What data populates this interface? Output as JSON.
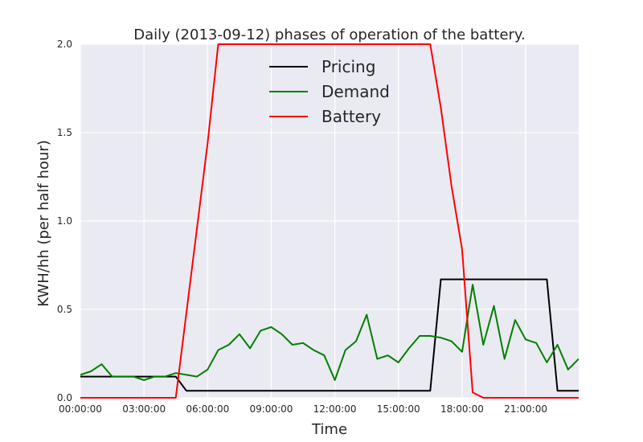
{
  "chart_data": {
    "type": "line",
    "title": "Daily (2013-09-12) phases of operation of the battery.",
    "xlabel": "Time",
    "ylabel": "KWH/hh (per half hour)",
    "xlim": [
      "00:00:00",
      "23:30:00"
    ],
    "ylim": [
      0,
      2.0
    ],
    "x_ticks": [
      "00:00:00",
      "03:00:00",
      "06:00:00",
      "09:00:00",
      "12:00:00",
      "15:00:00",
      "18:00:00",
      "21:00:00"
    ],
    "y_ticks": [
      "0.0",
      "0.5",
      "1.0",
      "1.5",
      "2.0"
    ],
    "grid": true,
    "legend_position": "top-center",
    "background": "#EAEAF2",
    "x": [
      "00:00:00",
      "00:30:00",
      "01:00:00",
      "01:30:00",
      "02:00:00",
      "02:30:00",
      "03:00:00",
      "03:30:00",
      "04:00:00",
      "04:30:00",
      "05:00:00",
      "05:30:00",
      "06:00:00",
      "06:30:00",
      "07:00:00",
      "07:30:00",
      "08:00:00",
      "08:30:00",
      "09:00:00",
      "09:30:00",
      "10:00:00",
      "10:30:00",
      "11:00:00",
      "11:30:00",
      "12:00:00",
      "12:30:00",
      "13:00:00",
      "13:30:00",
      "14:00:00",
      "14:30:00",
      "15:00:00",
      "15:30:00",
      "16:00:00",
      "16:30:00",
      "17:00:00",
      "17:30:00",
      "18:00:00",
      "18:30:00",
      "19:00:00",
      "19:30:00",
      "20:00:00",
      "20:30:00",
      "21:00:00",
      "21:30:00",
      "22:00:00",
      "22:30:00",
      "23:00:00",
      "23:30:00"
    ],
    "series": [
      {
        "name": "Pricing",
        "color": "#000000",
        "values": [
          0.12,
          0.12,
          0.12,
          0.12,
          0.12,
          0.12,
          0.12,
          0.12,
          0.12,
          0.12,
          0.04,
          0.04,
          0.04,
          0.04,
          0.04,
          0.04,
          0.04,
          0.04,
          0.04,
          0.04,
          0.04,
          0.04,
          0.04,
          0.04,
          0.04,
          0.04,
          0.04,
          0.04,
          0.04,
          0.04,
          0.04,
          0.04,
          0.04,
          0.04,
          0.67,
          0.67,
          0.67,
          0.67,
          0.67,
          0.67,
          0.67,
          0.67,
          0.67,
          0.67,
          0.67,
          0.04,
          0.04,
          0.04
        ]
      },
      {
        "name": "Demand",
        "color": "#008000",
        "values": [
          0.13,
          0.15,
          0.19,
          0.12,
          0.12,
          0.12,
          0.1,
          0.12,
          0.12,
          0.14,
          0.13,
          0.12,
          0.16,
          0.27,
          0.3,
          0.36,
          0.28,
          0.38,
          0.4,
          0.36,
          0.3,
          0.31,
          0.27,
          0.24,
          0.1,
          0.27,
          0.32,
          0.47,
          0.22,
          0.24,
          0.2,
          0.28,
          0.35,
          0.35,
          0.34,
          0.32,
          0.26,
          0.64,
          0.3,
          0.52,
          0.22,
          0.44,
          0.33,
          0.31,
          0.2,
          0.3,
          0.16,
          0.22
        ]
      },
      {
        "name": "Battery",
        "color": "#FF0000",
        "values": [
          0,
          0,
          0,
          0,
          0,
          0,
          0,
          0,
          0,
          0,
          0.48,
          0.96,
          1.44,
          2.0,
          2.0,
          2.0,
          2.0,
          2.0,
          2.0,
          2.0,
          2.0,
          2.0,
          2.0,
          2.0,
          2.0,
          2.0,
          2.0,
          2.0,
          2.0,
          2.0,
          2.0,
          2.0,
          2.0,
          2.0,
          1.64,
          1.2,
          0.84,
          0.03,
          0,
          0,
          0,
          0,
          0,
          0,
          0,
          0,
          0,
          0
        ]
      }
    ]
  }
}
